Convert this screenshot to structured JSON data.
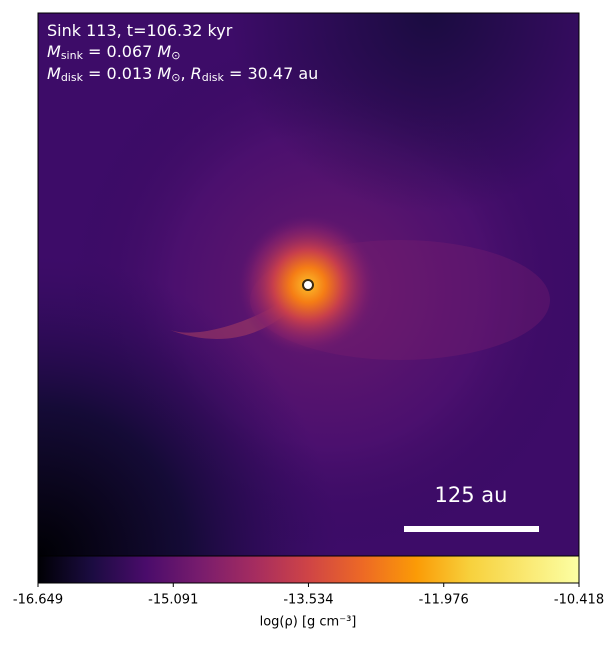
{
  "chart_data": {
    "type": "image",
    "annotation_lines": [
      [
        "Sink 113, t=106.32 kyr"
      ],
      [
        "M",
        "sink",
        " = 0.067 ",
        "M",
        "⊙"
      ],
      [
        "M",
        "disk",
        " = 0.013 ",
        "M",
        "⊙",
        ", ",
        "R",
        "disk",
        " = 30.47 au"
      ]
    ],
    "scale_bar": {
      "value": 125,
      "label": "125 au"
    },
    "colorbar": {
      "label": "log(ρ) [g cm⁻³]",
      "lim": [
        -16.649,
        -10.418
      ],
      "ticks": [
        -16.649,
        -15.091,
        -13.534,
        -11.976,
        -10.418
      ]
    }
  }
}
